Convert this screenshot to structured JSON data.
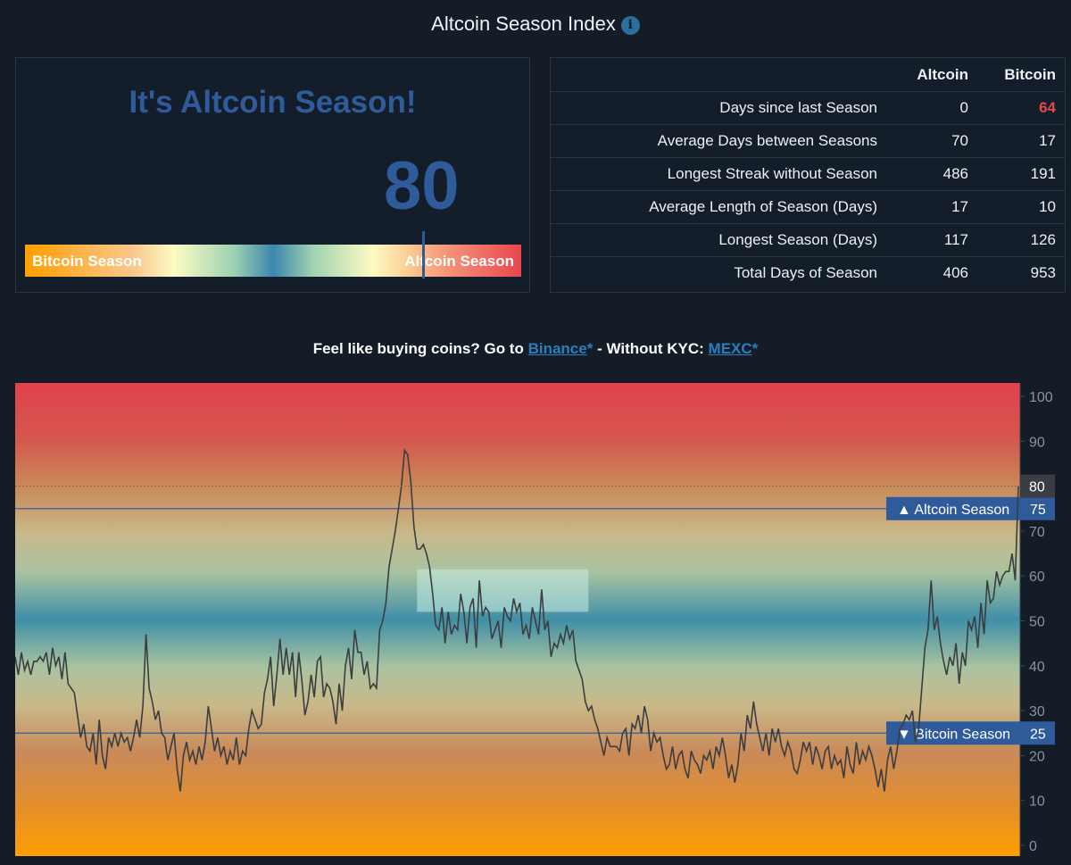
{
  "header": {
    "title": "Altcoin Season Index",
    "info_icon": "info-icon"
  },
  "gauge": {
    "headline": "It's Altcoin Season!",
    "value": "80",
    "left_label": "Bitcoin Season",
    "right_label": "Altcoin Season",
    "accent_color": "#2f5b9a"
  },
  "stats": {
    "columns": [
      "",
      "Altcoin",
      "Bitcoin"
    ],
    "rows": [
      {
        "label": "Days since last Season",
        "altcoin": "0",
        "bitcoin": "64"
      },
      {
        "label": "Average Days between Seasons",
        "altcoin": "70",
        "bitcoin": "17"
      },
      {
        "label": "Longest Streak without Season",
        "altcoin": "486",
        "bitcoin": "191"
      },
      {
        "label": "Average Length of Season (Days)",
        "altcoin": "17",
        "bitcoin": "10"
      },
      {
        "label": "Longest Season (Days)",
        "altcoin": "117",
        "bitcoin": "126"
      },
      {
        "label": "Total Days of Season",
        "altcoin": "406",
        "bitcoin": "953"
      }
    ],
    "highlight_color": "#e5484d"
  },
  "promo": {
    "prefix": "Feel like buying coins? Go to ",
    "link1": "Binance",
    "star1": "*",
    "middle": " - Without KYC: ",
    "link2": "MEXC",
    "star2": "*"
  },
  "chart_data": {
    "type": "line",
    "ylim": [
      0,
      100
    ],
    "y_ticks": [
      0,
      10,
      20,
      30,
      40,
      50,
      60,
      70,
      80,
      90,
      100
    ],
    "grid": false,
    "current_value": 80,
    "reference_lines": [
      {
        "label": "▲ Altcoin Season",
        "value": 75
      },
      {
        "label": "▼ Bitcoin Season",
        "value": 25
      }
    ],
    "series": [
      {
        "values": [
          42,
          38,
          43,
          39,
          41,
          38,
          41,
          41,
          42,
          41,
          43,
          38,
          44,
          40,
          42,
          37,
          43,
          36,
          35,
          34,
          29,
          24,
          27,
          22,
          21,
          25,
          18,
          28,
          20,
          17,
          24,
          22,
          25,
          22,
          25,
          23,
          24,
          21,
          24,
          28,
          24,
          31,
          47,
          35,
          32,
          28,
          30,
          25,
          24,
          19,
          22,
          25,
          17,
          12,
          20,
          23,
          19,
          21,
          18,
          22,
          19,
          23,
          31,
          26,
          21,
          24,
          20,
          22,
          18,
          21,
          19,
          24,
          18,
          21,
          20,
          26,
          30,
          28,
          26,
          27,
          34,
          37,
          42,
          31,
          38,
          46,
          38,
          44,
          38,
          43,
          33,
          43,
          37,
          29,
          32,
          38,
          33,
          41,
          42,
          33,
          36,
          35,
          32,
          27,
          36,
          30,
          40,
          44,
          37,
          48,
          43,
          43,
          38,
          41,
          35,
          36,
          35,
          48,
          50,
          54,
          62,
          66,
          70,
          75,
          80,
          88,
          87,
          81,
          71,
          66,
          66,
          67,
          65,
          62,
          56,
          49,
          48,
          53,
          45,
          52,
          47,
          49,
          48,
          56,
          52,
          45,
          53,
          55,
          44,
          59,
          51,
          53,
          52,
          46,
          48,
          50,
          44,
          53,
          51,
          50,
          55,
          52,
          54,
          47,
          49,
          46,
          53,
          50,
          47,
          57,
          48,
          50,
          42,
          45,
          44,
          47,
          45,
          49,
          46,
          48,
          41,
          39,
          37,
          32,
          30,
          31,
          28,
          26,
          23,
          20,
          24,
          22,
          22,
          22,
          21,
          25,
          26,
          20,
          27,
          26,
          29,
          25,
          31,
          28,
          21,
          25,
          23,
          24,
          20,
          17,
          18,
          22,
          17,
          20,
          21,
          17,
          15,
          21,
          19,
          18,
          16,
          20,
          19,
          21,
          17,
          22,
          20,
          24,
          20,
          15,
          18,
          14,
          18,
          25,
          21,
          29,
          26,
          32,
          27,
          24,
          21,
          25,
          20,
          26,
          23,
          26,
          22,
          20,
          23,
          21,
          17,
          16,
          19,
          23,
          21,
          23,
          18,
          22,
          20,
          17,
          21,
          22,
          17,
          20,
          18,
          19,
          15,
          22,
          18,
          16,
          23,
          18,
          21,
          19,
          22,
          20,
          17,
          13,
          17,
          12,
          19,
          22,
          17,
          21,
          26,
          27,
          29,
          28,
          30,
          23,
          26,
          35,
          44,
          48,
          59,
          48,
          51,
          45,
          41,
          38,
          42,
          40,
          45,
          36,
          43,
          40,
          50,
          48,
          51,
          44,
          54,
          47,
          59,
          54,
          55,
          61,
          58,
          60,
          61,
          61,
          65,
          59,
          80
        ]
      }
    ]
  }
}
